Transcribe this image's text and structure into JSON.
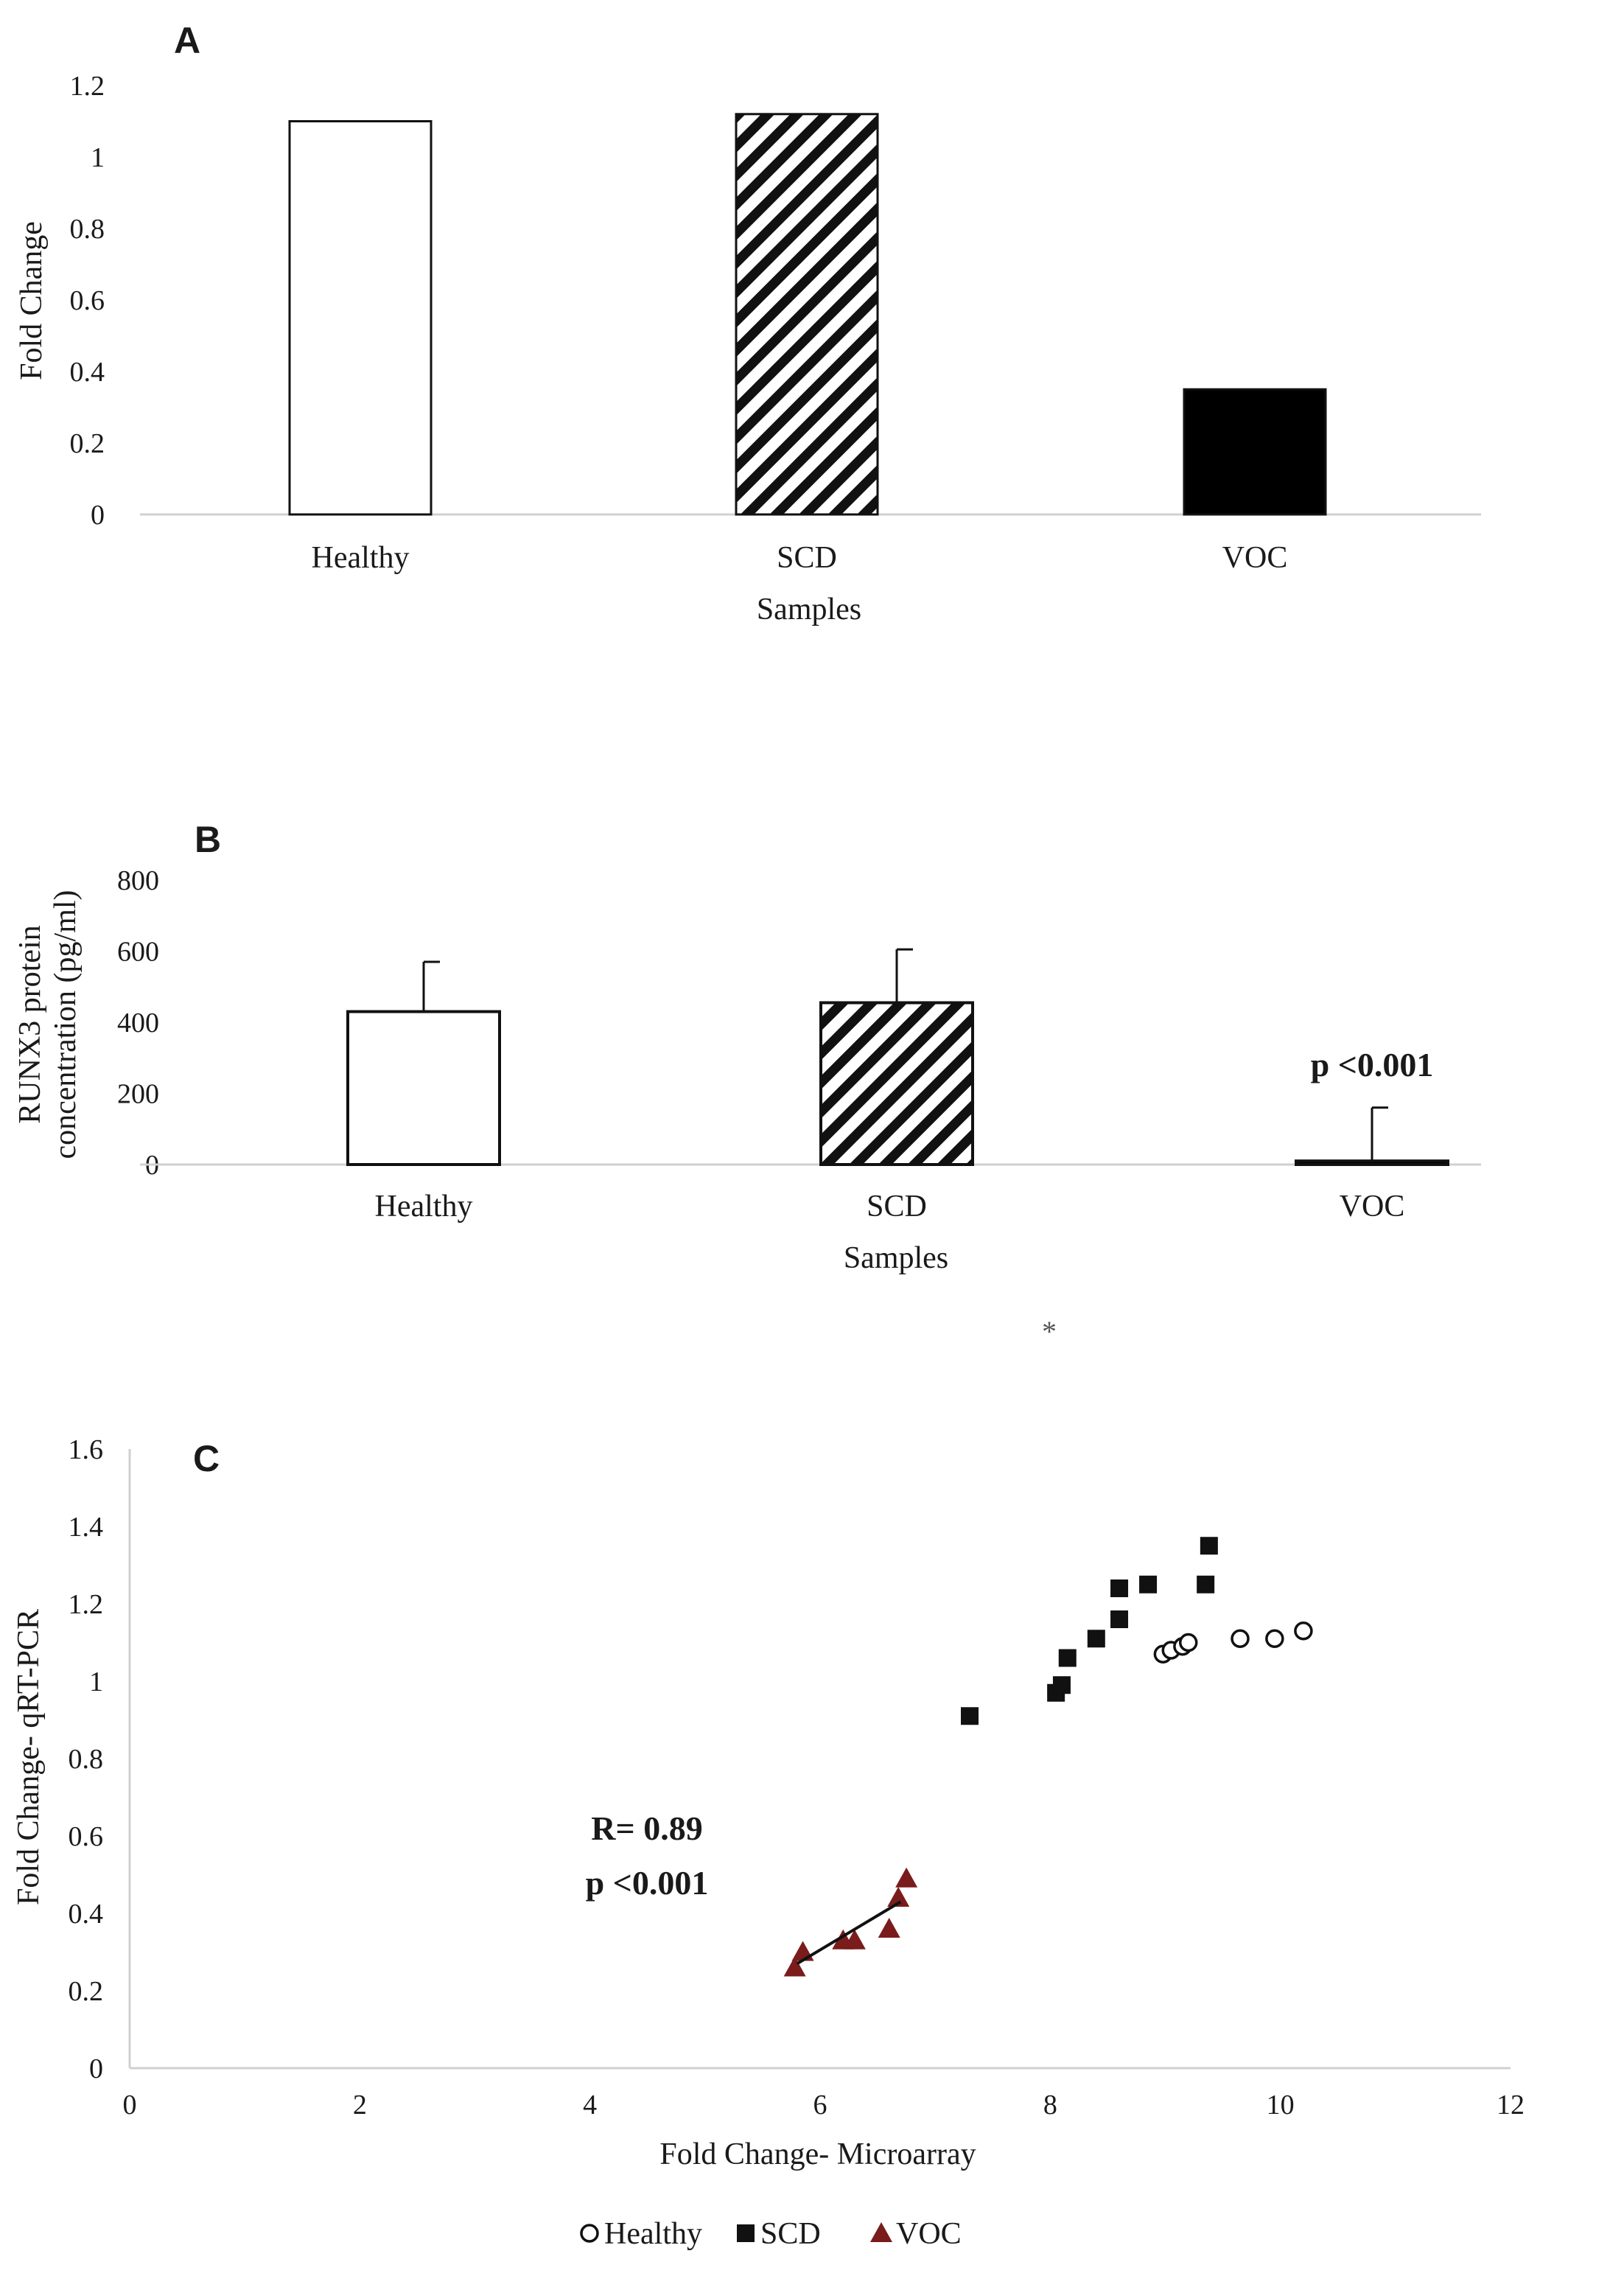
{
  "chart_data": [
    {
      "panel": "A",
      "type": "bar",
      "categories": [
        "Healthy",
        "SCD",
        "VOC"
      ],
      "values": [
        1.1,
        1.12,
        0.35
      ],
      "fills": [
        "white",
        "hatched",
        "black"
      ],
      "xlabel": "Samples",
      "ylabel": "Fold Change",
      "ylim": [
        0,
        1.2
      ],
      "yticks": [
        "0",
        "0.2",
        "0.4",
        "0.6",
        "0.8",
        "1",
        "1.2"
      ]
    },
    {
      "panel": "B",
      "type": "bar",
      "categories": [
        "Healthy",
        "SCD",
        "VOC"
      ],
      "values": [
        430,
        455,
        10
      ],
      "errors": [
        140,
        150,
        150
      ],
      "fills": [
        "white",
        "hatched",
        "black"
      ],
      "xlabel": "Samples",
      "ylabel_line1": "RUNX3 protein",
      "ylabel_line2": "concentration (pg/ml)",
      "ylim": [
        0,
        800
      ],
      "yticks": [
        "0",
        "200",
        "400",
        "600",
        "800"
      ],
      "annotation": "p <0.001"
    },
    {
      "panel": "C",
      "type": "scatter",
      "xlabel": "Fold Change- Microarray",
      "ylabel": "Fold Change- qRT-PCR",
      "xlim": [
        0,
        12
      ],
      "ylim": [
        0,
        1.6
      ],
      "xticks": [
        "0",
        "2",
        "4",
        "6",
        "8",
        "10",
        "12"
      ],
      "yticks": [
        "0",
        "0.2",
        "0.4",
        "0.6",
        "0.8",
        "1",
        "1.2",
        "1.4",
        "1.6"
      ],
      "series": [
        {
          "name": "Healthy",
          "marker": "circle",
          "color": "#111111",
          "points": [
            [
              8.98,
              1.07
            ],
            [
              9.05,
              1.08
            ],
            [
              9.15,
              1.09
            ],
            [
              9.2,
              1.1
            ],
            [
              9.65,
              1.11
            ],
            [
              9.95,
              1.11
            ],
            [
              10.2,
              1.13
            ]
          ]
        },
        {
          "name": "SCD",
          "marker": "square",
          "color": "#111111",
          "points": [
            [
              7.3,
              0.91
            ],
            [
              8.05,
              0.97
            ],
            [
              8.1,
              0.99
            ],
            [
              8.15,
              1.06
            ],
            [
              8.4,
              1.11
            ],
            [
              8.6,
              1.16
            ],
            [
              8.6,
              1.24
            ],
            [
              8.85,
              1.25
            ],
            [
              9.35,
              1.25
            ],
            [
              9.38,
              1.35
            ]
          ]
        },
        {
          "name": "VOC",
          "marker": "triangle",
          "color": "#7a1c1c",
          "points": [
            [
              5.78,
              0.26
            ],
            [
              5.85,
              0.3
            ],
            [
              6.2,
              0.33
            ],
            [
              6.3,
              0.33
            ],
            [
              6.6,
              0.36
            ],
            [
              6.68,
              0.44
            ],
            [
              6.75,
              0.49
            ]
          ]
        }
      ],
      "trendline": {
        "series": "VOC",
        "x": [
          5.8,
          6.7
        ],
        "y": [
          0.27,
          0.43
        ]
      },
      "annotation_line1": "R= 0.89",
      "annotation_line2": "p <0.001"
    }
  ],
  "stray_mark": "*"
}
